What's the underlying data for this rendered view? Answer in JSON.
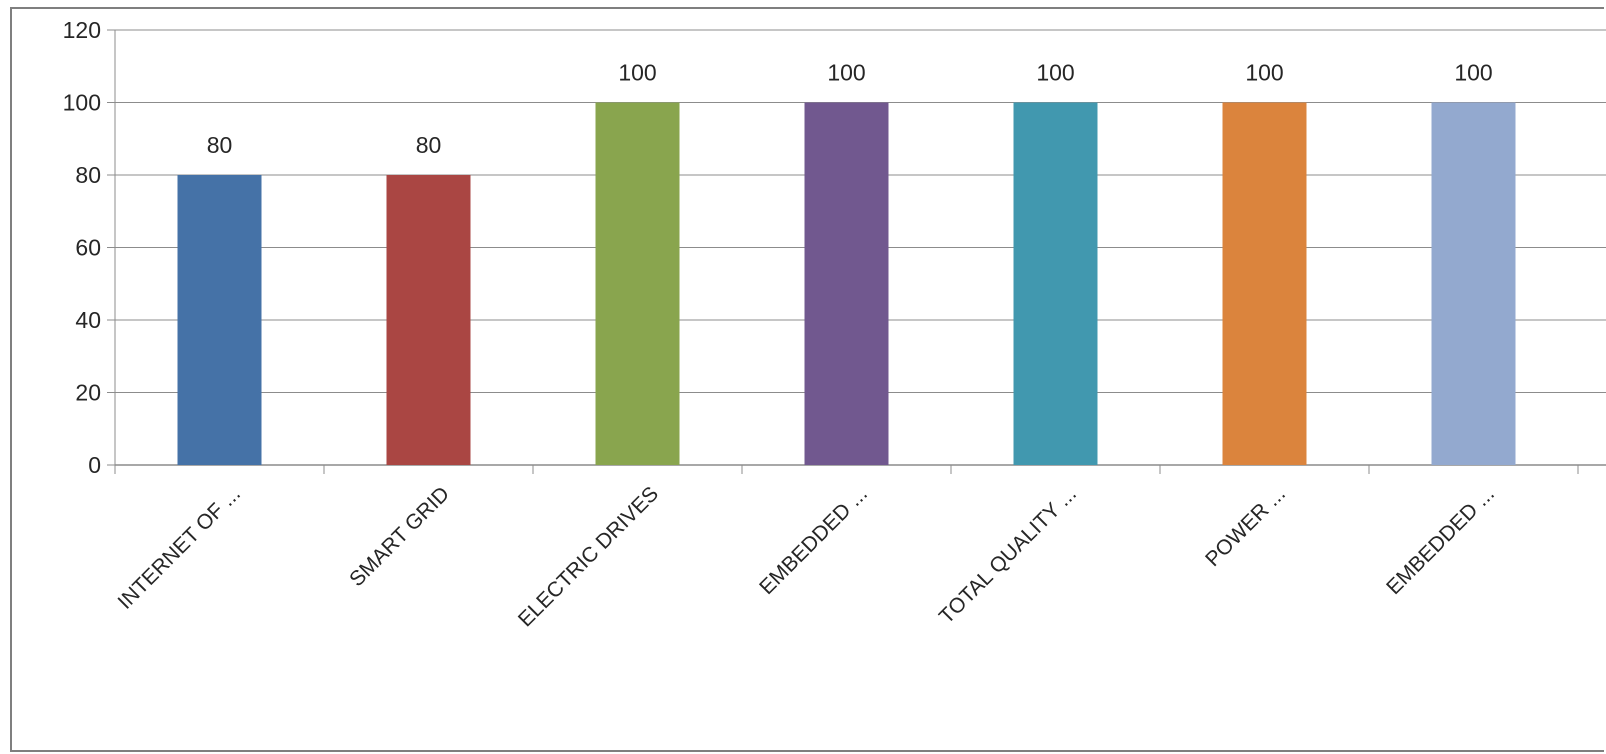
{
  "chart_data": {
    "type": "bar",
    "categories": [
      "INTERNET OF ...",
      "SMART GRID",
      "ELECTRIC DRIVES",
      "EMBEDDED ...",
      "TOTAL QUALITY ...",
      "POWER ...",
      "EMBEDDED ..."
    ],
    "values": [
      80,
      80,
      100,
      100,
      100,
      100,
      100
    ],
    "data_labels": [
      "80",
      "80",
      "100",
      "100",
      "100",
      "100",
      "100"
    ],
    "colors": [
      "#4572a7",
      "#aa4643",
      "#89a54e",
      "#71588f",
      "#4198af",
      "#db843d",
      "#93a9cf"
    ],
    "ylim": [
      0,
      120
    ],
    "yticks": [
      "0",
      "20",
      "40",
      "60",
      "80",
      "100",
      "120"
    ],
    "title": "",
    "xlabel": "",
    "ylabel": "",
    "grid": true,
    "legend": "none"
  }
}
